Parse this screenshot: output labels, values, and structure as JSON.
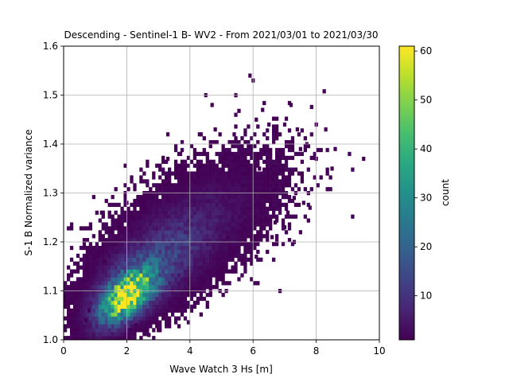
{
  "chart_data": {
    "type": "heatmap",
    "title": "Descending - Sentinel-1 B- WV2 - From 2021/03/01 to 2021/03/30",
    "xlabel": "Wave Watch 3 Hs [m]",
    "ylabel": "S-1 B Normalized variance",
    "xlim": [
      0,
      10
    ],
    "ylim": [
      1.0,
      1.6
    ],
    "xticks": [
      "0",
      "2",
      "4",
      "6",
      "8",
      "10"
    ],
    "yticks": [
      "1.0",
      "1.1",
      "1.2",
      "1.3",
      "1.4",
      "1.5",
      "1.6"
    ],
    "grid": true,
    "colormap": "viridis",
    "colorbar": {
      "label": "count",
      "range": [
        1,
        61
      ],
      "ticks": [
        "10",
        "20",
        "30",
        "40",
        "50",
        "60"
      ]
    },
    "density_model": {
      "description": "2D histogram of Wave Watch 3 Hs vs normalized variance",
      "peak": {
        "x": 2.0,
        "y": 1.09,
        "count": 61
      },
      "cores": [
        {
          "x": 2.0,
          "y": 1.09,
          "sx": 0.55,
          "sy": 0.035,
          "rho": 0.55,
          "amp": 60
        },
        {
          "x": 2.8,
          "y": 1.15,
          "sx": 1.1,
          "sy": 0.06,
          "rho": 0.6,
          "amp": 12
        },
        {
          "x": 4.2,
          "y": 1.24,
          "sx": 1.4,
          "sy": 0.07,
          "rho": 0.55,
          "amp": 4
        }
      ],
      "outliers": [
        [
          5.9,
          1.54
        ],
        [
          6.0,
          1.53
        ],
        [
          4.5,
          1.5
        ],
        [
          4.7,
          1.48
        ],
        [
          7.2,
          1.48
        ],
        [
          6.3,
          1.47
        ],
        [
          6.1,
          1.45
        ],
        [
          7.0,
          1.44
        ],
        [
          8.0,
          1.44
        ],
        [
          6.5,
          1.44
        ],
        [
          8.3,
          1.43
        ],
        [
          7.4,
          1.43
        ],
        [
          4.8,
          1.43
        ],
        [
          4.3,
          1.42
        ],
        [
          5.4,
          1.42
        ],
        [
          7.7,
          1.4
        ],
        [
          3.3,
          1.42
        ],
        [
          9.5,
          1.37
        ],
        [
          8.5,
          1.35
        ],
        [
          8.0,
          1.37
        ],
        [
          8.6,
          1.39
        ],
        [
          7.5,
          1.39
        ],
        [
          6.9,
          1.38
        ],
        [
          6.2,
          1.35
        ],
        [
          7.3,
          1.29
        ],
        [
          7.6,
          1.28
        ],
        [
          7.8,
          1.27
        ],
        [
          7.1,
          1.26
        ],
        [
          6.4,
          1.25
        ],
        [
          6.7,
          1.24
        ],
        [
          2.4,
          1.25
        ],
        [
          1.2,
          1.26
        ],
        [
          2.0,
          1.28
        ],
        [
          3.7,
          1.38
        ],
        [
          3.3,
          1.37
        ],
        [
          7.5,
          1.22
        ],
        [
          7.0,
          1.23
        ],
        [
          6.6,
          1.21
        ],
        [
          7.3,
          1.2
        ],
        [
          0.8,
          1.06
        ],
        [
          0.7,
          1.04
        ],
        [
          2.1,
          1.02
        ],
        [
          1.3,
          1.16
        ],
        [
          2.7,
          1.01
        ],
        [
          6.1,
          1.17
        ],
        [
          5.4,
          1.14
        ],
        [
          5.2,
          1.21
        ],
        [
          3.0,
          1.02
        ],
        [
          2.3,
          1.03
        ]
      ]
    }
  }
}
